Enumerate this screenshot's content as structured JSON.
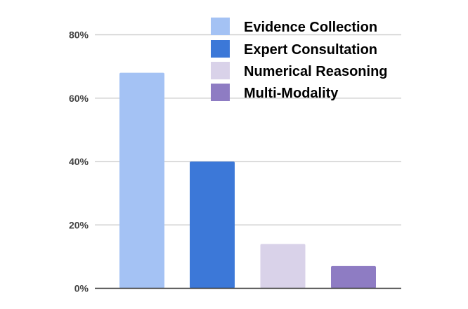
{
  "chart_data": {
    "type": "bar",
    "title": "",
    "xlabel": "",
    "ylabel": "",
    "ylim": [
      0,
      80
    ],
    "yticks": [
      0,
      20,
      40,
      60,
      80
    ],
    "ytick_labels": [
      "0%",
      "20%",
      "40%",
      "60%",
      "80%"
    ],
    "grid": true,
    "legend_position": "top-right",
    "categories": [
      "Evidence Collection",
      "Expert Consultation",
      "Numerical Reasoning",
      "Multi-Modality"
    ],
    "values": [
      68,
      40,
      14,
      7
    ],
    "colors": [
      "#a4c2f4",
      "#3c78d8",
      "#d9d2e9",
      "#8e7cc3"
    ],
    "legend": [
      "Evidence Collection",
      "Expert Consultation",
      "Numerical Reasoning",
      "Multi-Modality"
    ]
  }
}
